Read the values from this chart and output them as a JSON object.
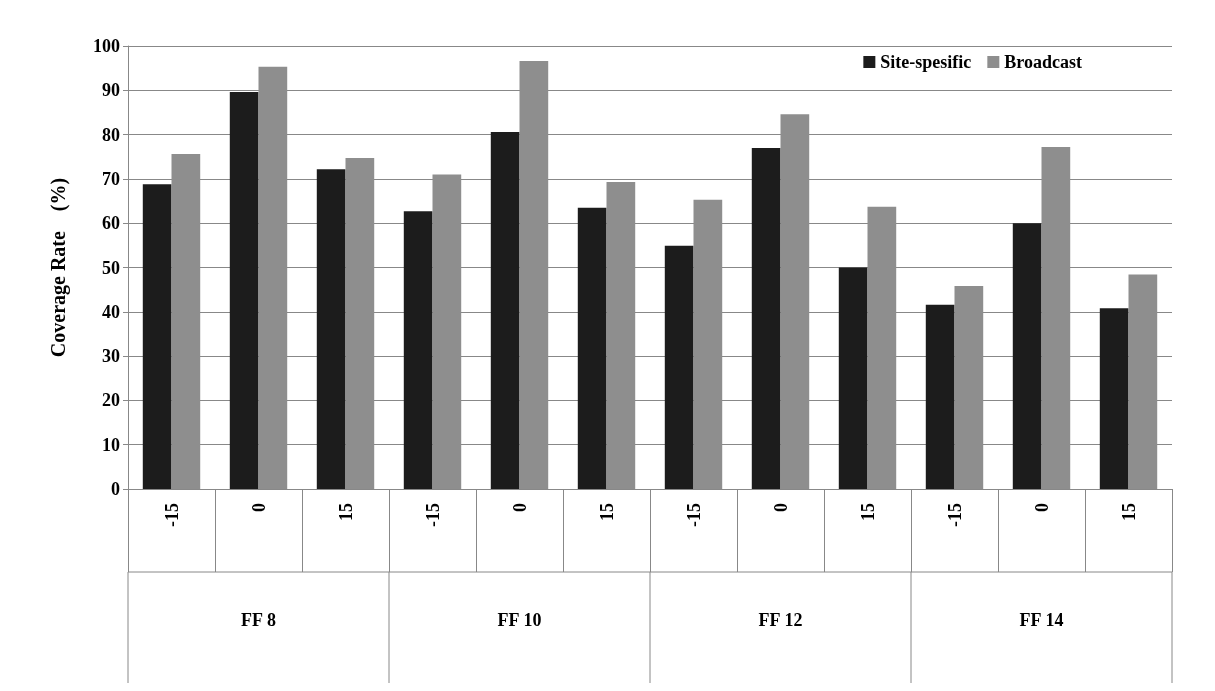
{
  "chart_data": {
    "type": "bar",
    "ylabel": "Coverage Rate    (%)",
    "categories": [
      "-15",
      "0",
      "15",
      "-15",
      "0",
      "15",
      "-15",
      "0",
      "15",
      "-15",
      "0",
      "15"
    ],
    "annotations": [
      "FF 8",
      "FF 10",
      "FF 12",
      "FF 14"
    ],
    "series": [
      {
        "name": "Site-spesific",
        "color": "#1c1c1c",
        "values": [
          68.8,
          89.6,
          72.2,
          62.7,
          80.6,
          63.5,
          54.9,
          77.0,
          50.0,
          41.6,
          60.0,
          40.8
        ]
      },
      {
        "name": "Broadcast",
        "color": "#8e8e8e",
        "values": [
          75.6,
          95.3,
          74.7,
          71.0,
          96.6,
          69.3,
          65.3,
          84.6,
          63.7,
          45.8,
          77.2,
          48.4
        ]
      }
    ],
    "ylim": [
      0,
      100
    ],
    "yticks": [
      0,
      10,
      20,
      30,
      40,
      50,
      60,
      70,
      80,
      90,
      100
    ],
    "grid": "y",
    "legend": "top right"
  }
}
